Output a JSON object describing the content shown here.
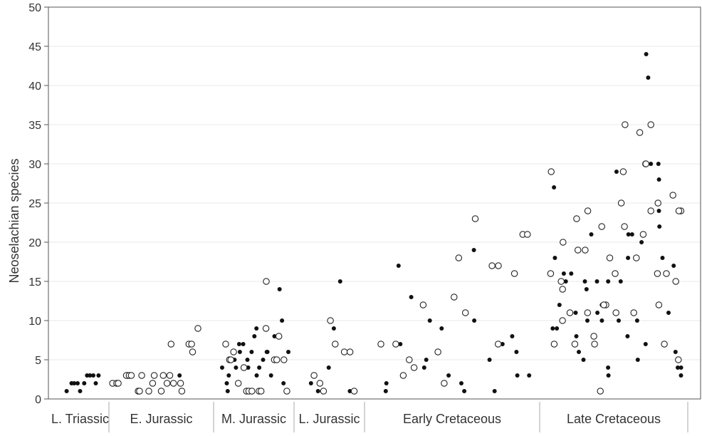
{
  "chart_data": {
    "type": "scatter",
    "ylabel": "Neoselachian species",
    "xlabel": "",
    "ylim": [
      0,
      50
    ],
    "y_ticks": [
      0,
      5,
      10,
      15,
      20,
      25,
      30,
      35,
      40,
      45,
      50
    ],
    "grid": "horizontal",
    "x_categories": [
      "L. Triassic",
      "E. Jurassic",
      "M. Jurassic",
      "L. Jurassic",
      "Early Cretaceous",
      "Late Cretaceous"
    ],
    "series": [
      {
        "marker": "filled",
        "points": [
          [
            "L. Triassic",
            1
          ],
          [
            "L. Triassic",
            2
          ],
          [
            "L. Triassic",
            2
          ],
          [
            "L. Triassic",
            2
          ],
          [
            "L. Triassic",
            1
          ],
          [
            "L. Triassic",
            2
          ],
          [
            "L. Triassic",
            3
          ],
          [
            "L. Triassic",
            3
          ],
          [
            "L. Triassic",
            3
          ],
          [
            "L. Triassic",
            2
          ],
          [
            "L. Triassic",
            3
          ],
          [
            "E. Jurassic",
            3
          ],
          [
            "E. Jurassic",
            3
          ],
          [
            "M. Jurassic",
            4
          ],
          [
            "M. Jurassic",
            1
          ],
          [
            "M. Jurassic",
            2
          ],
          [
            "M. Jurassic",
            3
          ],
          [
            "M. Jurassic",
            4
          ],
          [
            "M. Jurassic",
            5
          ],
          [
            "M. Jurassic",
            6
          ],
          [
            "M. Jurassic",
            7
          ],
          [
            "M. Jurassic",
            7
          ],
          [
            "M. Jurassic",
            4
          ],
          [
            "M. Jurassic",
            5
          ],
          [
            "M. Jurassic",
            6
          ],
          [
            "M. Jurassic",
            8
          ],
          [
            "M. Jurassic",
            9
          ],
          [
            "M. Jurassic",
            3
          ],
          [
            "M. Jurassic",
            4
          ],
          [
            "M. Jurassic",
            5
          ],
          [
            "M. Jurassic",
            6
          ],
          [
            "M. Jurassic",
            6
          ],
          [
            "M. Jurassic",
            3
          ],
          [
            "M. Jurassic",
            5
          ],
          [
            "M. Jurassic",
            8
          ],
          [
            "M. Jurassic",
            10
          ],
          [
            "M. Jurassic",
            14
          ],
          [
            "M. Jurassic",
            2
          ],
          [
            "M. Jurassic",
            6
          ],
          [
            "L. Jurassic",
            2
          ],
          [
            "L. Jurassic",
            1
          ],
          [
            "L. Jurassic",
            1
          ],
          [
            "L. Jurassic",
            4
          ],
          [
            "L. Jurassic",
            9
          ],
          [
            "L. Jurassic",
            15
          ],
          [
            "L. Jurassic",
            6
          ],
          [
            "L. Jurassic",
            1
          ],
          [
            "L. Jurassic",
            1
          ],
          [
            "Early Cretaceous",
            1
          ],
          [
            "Early Cretaceous",
            2
          ],
          [
            "Early Cretaceous",
            17
          ],
          [
            "Early Cretaceous",
            7
          ],
          [
            "Early Cretaceous",
            13
          ],
          [
            "Early Cretaceous",
            5
          ],
          [
            "Early Cretaceous",
            4
          ],
          [
            "Early Cretaceous",
            10
          ],
          [
            "Early Cretaceous",
            9
          ],
          [
            "Early Cretaceous",
            3
          ],
          [
            "Early Cretaceous",
            2
          ],
          [
            "Early Cretaceous",
            1
          ],
          [
            "Early Cretaceous",
            19
          ],
          [
            "Early Cretaceous",
            10
          ],
          [
            "Early Cretaceous",
            5
          ],
          [
            "Early Cretaceous",
            1
          ],
          [
            "Early Cretaceous",
            7
          ],
          [
            "Early Cretaceous",
            8
          ],
          [
            "Early Cretaceous",
            6
          ],
          [
            "Early Cretaceous",
            3
          ],
          [
            "Early Cretaceous",
            3
          ],
          [
            "Late Cretaceous",
            27
          ],
          [
            "Late Cretaceous",
            18
          ],
          [
            "Late Cretaceous",
            12
          ],
          [
            "Late Cretaceous",
            9
          ],
          [
            "Late Cretaceous",
            9
          ],
          [
            "Late Cretaceous",
            15
          ],
          [
            "Late Cretaceous",
            16
          ],
          [
            "Late Cretaceous",
            16
          ],
          [
            "Late Cretaceous",
            8
          ],
          [
            "Late Cretaceous",
            6
          ],
          [
            "Late Cretaceous",
            11
          ],
          [
            "Late Cretaceous",
            15
          ],
          [
            "Late Cretaceous",
            10
          ],
          [
            "Late Cretaceous",
            21
          ],
          [
            "Late Cretaceous",
            5
          ],
          [
            "Late Cretaceous",
            14
          ],
          [
            "Late Cretaceous",
            15
          ],
          [
            "Late Cretaceous",
            12
          ],
          [
            "Late Cretaceous",
            10
          ],
          [
            "Late Cretaceous",
            11
          ],
          [
            "Late Cretaceous",
            15
          ],
          [
            "Late Cretaceous",
            4
          ],
          [
            "Late Cretaceous",
            3
          ],
          [
            "Late Cretaceous",
            29
          ],
          [
            "Late Cretaceous",
            25
          ],
          [
            "Late Cretaceous",
            15
          ],
          [
            "Late Cretaceous",
            10
          ],
          [
            "Late Cretaceous",
            21
          ],
          [
            "Late Cretaceous",
            18
          ],
          [
            "Late Cretaceous",
            8
          ],
          [
            "Late Cretaceous",
            5
          ],
          [
            "Late Cretaceous",
            21
          ],
          [
            "Late Cretaceous",
            20
          ],
          [
            "Late Cretaceous",
            10
          ],
          [
            "Late Cretaceous",
            7
          ],
          [
            "Late Cretaceous",
            44
          ],
          [
            "Late Cretaceous",
            41
          ],
          [
            "Late Cretaceous",
            30
          ],
          [
            "Late Cretaceous",
            30
          ],
          [
            "Late Cretaceous",
            28
          ],
          [
            "Late Cretaceous",
            24
          ],
          [
            "Late Cretaceous",
            22
          ],
          [
            "Late Cretaceous",
            18
          ],
          [
            "Late Cretaceous",
            17
          ],
          [
            "Late Cretaceous",
            11
          ],
          [
            "Late Cretaceous",
            6
          ],
          [
            "Late Cretaceous",
            4
          ],
          [
            "Late Cretaceous",
            4
          ],
          [
            "Late Cretaceous",
            3
          ]
        ]
      },
      {
        "marker": "open",
        "points": [
          [
            "E. Jurassic",
            2
          ],
          [
            "E. Jurassic",
            2
          ],
          [
            "E. Jurassic",
            2
          ],
          [
            "E. Jurassic",
            3
          ],
          [
            "E. Jurassic",
            3
          ],
          [
            "E. Jurassic",
            3
          ],
          [
            "E. Jurassic",
            3
          ],
          [
            "E. Jurassic",
            1
          ],
          [
            "E. Jurassic",
            1
          ],
          [
            "E. Jurassic",
            3
          ],
          [
            "E. Jurassic",
            1
          ],
          [
            "E. Jurassic",
            2
          ],
          [
            "E. Jurassic",
            3
          ],
          [
            "E. Jurassic",
            1
          ],
          [
            "E. Jurassic",
            3
          ],
          [
            "E. Jurassic",
            2
          ],
          [
            "E. Jurassic",
            7
          ],
          [
            "E. Jurassic",
            3
          ],
          [
            "E. Jurassic",
            2
          ],
          [
            "E. Jurassic",
            1
          ],
          [
            "E. Jurassic",
            2
          ],
          [
            "E. Jurassic",
            7
          ],
          [
            "E. Jurassic",
            6
          ],
          [
            "E. Jurassic",
            7
          ],
          [
            "E. Jurassic",
            9
          ],
          [
            "M. Jurassic",
            7
          ],
          [
            "M. Jurassic",
            5
          ],
          [
            "M. Jurassic",
            5
          ],
          [
            "M. Jurassic",
            6
          ],
          [
            "M. Jurassic",
            2
          ],
          [
            "M. Jurassic",
            4
          ],
          [
            "M. Jurassic",
            1
          ],
          [
            "M. Jurassic",
            1
          ],
          [
            "M. Jurassic",
            1
          ],
          [
            "M. Jurassic",
            1
          ],
          [
            "M. Jurassic",
            1
          ],
          [
            "M. Jurassic",
            15
          ],
          [
            "M. Jurassic",
            9
          ],
          [
            "M. Jurassic",
            5
          ],
          [
            "M. Jurassic",
            5
          ],
          [
            "M. Jurassic",
            8
          ],
          [
            "M. Jurassic",
            5
          ],
          [
            "M. Jurassic",
            1
          ],
          [
            "L. Jurassic",
            3
          ],
          [
            "L. Jurassic",
            2
          ],
          [
            "L. Jurassic",
            1
          ],
          [
            "L. Jurassic",
            10
          ],
          [
            "L. Jurassic",
            7
          ],
          [
            "L. Jurassic",
            6
          ],
          [
            "L. Jurassic",
            6
          ],
          [
            "L. Jurassic",
            1
          ],
          [
            "Early Cretaceous",
            7
          ],
          [
            "Early Cretaceous",
            7
          ],
          [
            "Early Cretaceous",
            3
          ],
          [
            "Early Cretaceous",
            5
          ],
          [
            "Early Cretaceous",
            4
          ],
          [
            "Early Cretaceous",
            12
          ],
          [
            "Early Cretaceous",
            6
          ],
          [
            "Early Cretaceous",
            2
          ],
          [
            "Early Cretaceous",
            13
          ],
          [
            "Early Cretaceous",
            18
          ],
          [
            "Early Cretaceous",
            11
          ],
          [
            "Early Cretaceous",
            23
          ],
          [
            "Early Cretaceous",
            17
          ],
          [
            "Early Cretaceous",
            7
          ],
          [
            "Early Cretaceous",
            17
          ],
          [
            "Early Cretaceous",
            16
          ],
          [
            "Early Cretaceous",
            21
          ],
          [
            "Early Cretaceous",
            21
          ],
          [
            "Late Cretaceous",
            7
          ],
          [
            "Late Cretaceous",
            16
          ],
          [
            "Late Cretaceous",
            29
          ],
          [
            "Late Cretaceous",
            20
          ],
          [
            "Late Cretaceous",
            15
          ],
          [
            "Late Cretaceous",
            14
          ],
          [
            "Late Cretaceous",
            10
          ],
          [
            "Late Cretaceous",
            11
          ],
          [
            "Late Cretaceous",
            7
          ],
          [
            "Late Cretaceous",
            23
          ],
          [
            "Late Cretaceous",
            19
          ],
          [
            "Late Cretaceous",
            19
          ],
          [
            "Late Cretaceous",
            11
          ],
          [
            "Late Cretaceous",
            8
          ],
          [
            "Late Cretaceous",
            24
          ],
          [
            "Late Cretaceous",
            7
          ],
          [
            "Late Cretaceous",
            1
          ],
          [
            "Late Cretaceous",
            12
          ],
          [
            "Late Cretaceous",
            22
          ],
          [
            "Late Cretaceous",
            12
          ],
          [
            "Late Cretaceous",
            16
          ],
          [
            "Late Cretaceous",
            18
          ],
          [
            "Late Cretaceous",
            11
          ],
          [
            "Late Cretaceous",
            35
          ],
          [
            "Late Cretaceous",
            29
          ],
          [
            "Late Cretaceous",
            25
          ],
          [
            "Late Cretaceous",
            22
          ],
          [
            "Late Cretaceous",
            11
          ],
          [
            "Late Cretaceous",
            18
          ],
          [
            "Late Cretaceous",
            34
          ],
          [
            "Late Cretaceous",
            30
          ],
          [
            "Late Cretaceous",
            21
          ],
          [
            "Late Cretaceous",
            35
          ],
          [
            "Late Cretaceous",
            30
          ],
          [
            "Late Cretaceous",
            25
          ],
          [
            "Late Cretaceous",
            24
          ],
          [
            "Late Cretaceous",
            12
          ],
          [
            "Late Cretaceous",
            16
          ],
          [
            "Late Cretaceous",
            7
          ],
          [
            "Late Cretaceous",
            16
          ],
          [
            "Late Cretaceous",
            15
          ],
          [
            "Late Cretaceous",
            5
          ],
          [
            "Late Cretaceous",
            26
          ],
          [
            "Late Cretaceous",
            24
          ],
          [
            "Late Cretaceous",
            24
          ]
        ]
      }
    ]
  }
}
